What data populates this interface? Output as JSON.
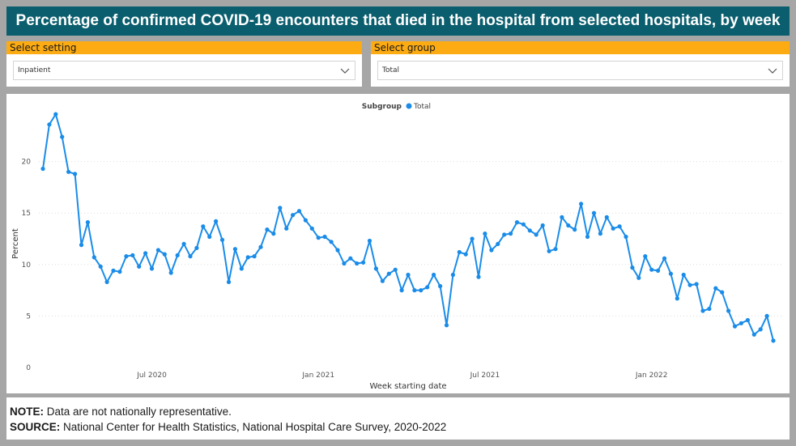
{
  "page": {
    "title": "Percentage of confirmed COVID-19 encounters that died in the hospital from selected hospitals, by week"
  },
  "filters": {
    "setting": {
      "label": "Select setting",
      "value": "Inpatient"
    },
    "group": {
      "label": "Select group",
      "value": "Total"
    }
  },
  "colors": {
    "title_bg": "#0b5e6e",
    "slicer_header": "#fcab13",
    "series": "#1a8ce8",
    "background": "#a6a6a6"
  },
  "footer": {
    "note_label": "NOTE:",
    "note_text": " Data are not nationally representative.",
    "source_label": "SOURCE:",
    "source_text": " National Center for Health Statistics, National Hospital Care Survey, 2020-2022"
  },
  "chart_data": {
    "type": "line",
    "title": "",
    "xlabel": "Week starting date",
    "ylabel": "Percent",
    "ylim": [
      0,
      25
    ],
    "yticks": [
      0,
      5,
      10,
      15,
      20
    ],
    "grid": true,
    "legend": {
      "title": "Subgroup",
      "placement": "top-center"
    },
    "x_tick_labels": [
      {
        "label": "Jul 2020",
        "index": 17
      },
      {
        "label": "Jan 2021",
        "index": 43
      },
      {
        "label": "Jul 2021",
        "index": 69
      },
      {
        "label": "Jan 2022",
        "index": 95
      }
    ],
    "series": [
      {
        "name": "Total",
        "values": [
          19.3,
          23.6,
          24.6,
          22.4,
          19.0,
          18.8,
          11.9,
          14.1,
          10.7,
          9.8,
          8.3,
          9.4,
          9.3,
          10.8,
          10.9,
          9.8,
          11.1,
          9.6,
          11.4,
          11.0,
          9.2,
          10.9,
          12.0,
          10.8,
          11.6,
          13.7,
          12.7,
          14.2,
          12.4,
          8.3,
          11.5,
          9.6,
          10.7,
          10.8,
          11.7,
          13.4,
          13.0,
          15.5,
          13.5,
          14.8,
          15.2,
          14.3,
          13.5,
          12.6,
          12.7,
          12.2,
          11.4,
          10.1,
          10.6,
          10.1,
          10.2,
          12.3,
          9.6,
          8.4,
          9.1,
          9.5,
          7.5,
          9.0,
          7.5,
          7.5,
          7.8,
          9.0,
          7.9,
          4.1,
          9.0,
          11.2,
          11.0,
          12.5,
          8.8,
          13.0,
          11.4,
          12.0,
          12.9,
          13.0,
          14.1,
          13.9,
          13.3,
          12.9,
          13.8,
          11.3,
          11.5,
          14.6,
          13.8,
          13.4,
          15.9,
          12.7,
          15.0,
          13.0,
          14.6,
          13.5,
          13.7,
          12.7,
          9.7,
          8.7,
          10.8,
          9.5,
          9.4,
          10.6,
          9.1,
          6.7,
          9.0,
          8.0,
          8.1,
          5.5,
          5.7,
          7.7,
          7.3,
          5.5,
          4.0,
          4.3,
          4.6,
          3.2,
          3.7,
          5.0,
          2.6
        ]
      }
    ]
  }
}
